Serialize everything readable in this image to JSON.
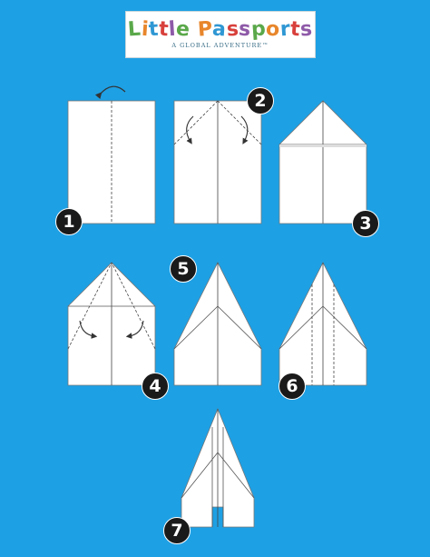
{
  "logo": {
    "title": "Little Passports",
    "title_letter_colors": [
      "#5aa84a",
      "#e8862b",
      "#2f97d3",
      "#d8403c",
      "#8e5aa8",
      "#5aa84a",
      "#e8862b",
      "#2f97d3",
      "#d8403c",
      "#8e5aa8",
      "#5aa84a",
      "#e8862b",
      "#2f97d3",
      "#d8403c",
      "#8e5aa8",
      "#5aa84a"
    ],
    "tagline": "A GLOBAL ADVENTURE™"
  },
  "steps": [
    {
      "number": "1"
    },
    {
      "number": "2"
    },
    {
      "number": "3"
    },
    {
      "number": "4"
    },
    {
      "number": "5"
    },
    {
      "number": "6"
    },
    {
      "number": "7"
    }
  ],
  "colors": {
    "background": "#1ea0e4",
    "paper": "#ffffff",
    "badge": "#1a1a1a",
    "line": "#333333"
  }
}
